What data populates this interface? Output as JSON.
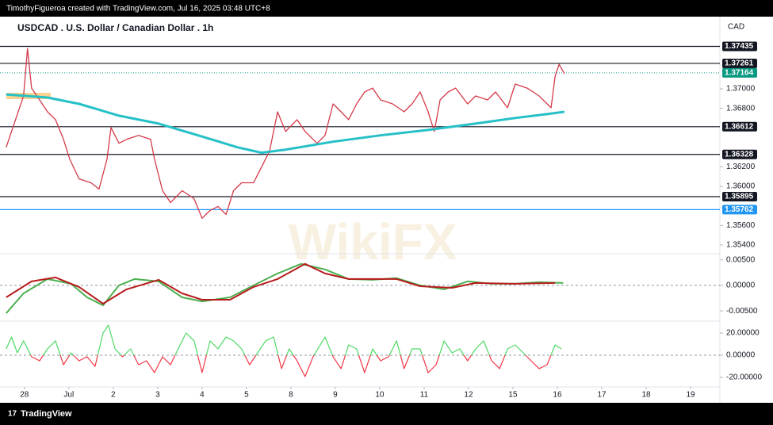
{
  "header": {
    "text": "TimothyFigueroa created with TradingView.com, Jul 16, 2025 03:48 UTC+8"
  },
  "footer": {
    "brand": "TradingView"
  },
  "watermark": "WikiFX",
  "chart_data": [
    {
      "type": "line",
      "title": "USDCAD . U.S. Dollar / Canadian Dollar . 1h",
      "y_label": "CAD",
      "xlim": [
        -0.55,
        15.66
      ],
      "ylim": [
        1.3531,
        1.3774
      ],
      "yticks": [
        {
          "value": 1.37,
          "label": "1.37000"
        },
        {
          "value": 1.368,
          "label": "1.36800"
        },
        {
          "value": 1.362,
          "label": "1.36200"
        },
        {
          "value": 1.36,
          "label": "1.36000"
        },
        {
          "value": 1.356,
          "label": "1.35600"
        },
        {
          "value": 1.354,
          "label": "1.35400"
        }
      ],
      "levels": [
        {
          "value": 1.37435,
          "color": "#131722"
        },
        {
          "value": 1.37261,
          "color": "#131722"
        },
        {
          "value": 1.37164,
          "color": "#089981"
        },
        {
          "value": 1.36612,
          "color": "#131722"
        },
        {
          "value": 1.36328,
          "color": "#131722"
        },
        {
          "value": 1.35895,
          "color": "#131722"
        },
        {
          "value": 1.35762,
          "color": "#2196f3"
        }
      ],
      "series": [
        {
          "color": "#d43a4a",
          "width": 1.3,
          "x": [
            -0.41,
            -0.2,
            -0.02,
            0.07,
            0.16,
            0.34,
            0.52,
            0.7,
            0.88,
            1.02,
            1.23,
            1.5,
            1.68,
            1.86,
            1.95,
            2.13,
            2.3,
            2.57,
            2.84,
            2.93,
            3.11,
            3.29,
            3.55,
            3.82,
            4,
            4.18,
            4.36,
            4.54,
            4.71,
            4.89,
            5.16,
            5.34,
            5.52,
            5.7,
            5.88,
            6.14,
            6.32,
            6.59,
            6.77,
            6.95,
            7.13,
            7.3,
            7.48,
            7.66,
            7.84,
            8.02,
            8.29,
            8.55,
            8.73,
            8.91,
            9.09,
            9.23,
            9.36,
            9.54,
            9.71,
            9.98,
            10.16,
            10.43,
            10.61,
            10.88,
            11.05,
            11.32,
            11.59,
            11.77,
            11.86,
            11.95,
            12.04,
            12.16
          ],
          "values": [
            1.36401,
            1.36684,
            1.36927,
            1.37413,
            1.37008,
            1.36887,
            1.36765,
            1.36684,
            1.36482,
            1.3628,
            1.36077,
            1.36037,
            1.35972,
            1.3628,
            1.36603,
            1.36442,
            1.36482,
            1.36523,
            1.36482,
            1.3628,
            1.35956,
            1.35835,
            1.35956,
            1.35875,
            1.35673,
            1.35754,
            1.35794,
            1.35713,
            1.35956,
            1.36037,
            1.36037,
            1.36199,
            1.36361,
            1.36765,
            1.36563,
            1.36684,
            1.36563,
            1.36442,
            1.36523,
            1.36846,
            1.36765,
            1.36684,
            1.36846,
            1.36968,
            1.37008,
            1.36887,
            1.36846,
            1.36765,
            1.36846,
            1.36968,
            1.36765,
            1.36563,
            1.36887,
            1.36968,
            1.37008,
            1.36846,
            1.36927,
            1.36887,
            1.36968,
            1.36806,
            1.37049,
            1.37008,
            1.36927,
            1.36846,
            1.36806,
            1.3713,
            1.37251,
            1.37154
          ]
        },
        {
          "color": "#26c0c7",
          "width": 3,
          "x": [
            -0.41,
            0.52,
            1.23,
            2.13,
            3.02,
            3.91,
            4.8,
            5.34,
            5.88,
            6.95,
            8.02,
            9.09,
            10.16,
            11.05,
            11.77,
            12.16
          ],
          "values": [
            1.36943,
            1.36911,
            1.36846,
            1.36725,
            1.36644,
            1.36523,
            1.36401,
            1.36345,
            1.36377,
            1.36458,
            1.36523,
            1.36579,
            1.36644,
            1.36701,
            1.36741,
            1.36765
          ]
        }
      ]
    },
    {
      "type": "line",
      "xlim": [
        -0.55,
        15.66
      ],
      "ylim": [
        -0.007,
        0.0062
      ],
      "yticks": [
        {
          "value": 0.005,
          "label": "0.00500"
        },
        {
          "value": 0,
          "label": "0.00000"
        },
        {
          "value": -0.005,
          "label": "-0.00500"
        }
      ],
      "zero_line": true,
      "series": [
        {
          "color": "#4caf50",
          "width": 2,
          "x": [
            -0.41,
            -0.02,
            0.52,
            1.05,
            1.41,
            1.77,
            2.13,
            2.48,
            3.02,
            3.55,
            4,
            4.63,
            5.16,
            5.7,
            6.23,
            6.77,
            7.3,
            7.84,
            8.38,
            8.91,
            9.45,
            9.98,
            10.52,
            11.05,
            11.59,
            12.13
          ],
          "values": [
            -0.00547,
            -0.00156,
            0.00125,
            0.00031,
            -0.00234,
            -0.00391,
            0,
            0.00125,
            0.00078,
            -0.00234,
            -0.00313,
            -0.00234,
            0,
            0.00234,
            0.00422,
            0.00313,
            0.00125,
            0.00109,
            0.00141,
            0,
            -0.00078,
            0.00078,
            0.00031,
            0.00031,
            0.00063,
            0.00047
          ]
        },
        {
          "color": "#b71c1c",
          "width": 2,
          "x": [
            -0.41,
            0.16,
            0.7,
            1.23,
            1.77,
            2.3,
            3.02,
            3.55,
            4,
            4.63,
            5.16,
            5.7,
            6.32,
            6.77,
            7.3,
            8.38,
            8.91,
            9.63,
            10.16,
            11.05,
            11.95
          ],
          "values": [
            -0.00234,
            0.00078,
            0.00156,
            -0.00031,
            -0.00359,
            -0.00078,
            0.00109,
            -0.00156,
            -0.00281,
            -0.00281,
            -0.00031,
            0.00125,
            0.00422,
            0.00234,
            0.00125,
            0.00125,
            -0.00016,
            -0.00047,
            0.00047,
            0.00031,
            0.00047
          ]
        }
      ]
    },
    {
      "type": "line",
      "xlim": [
        -0.55,
        15.66
      ],
      "ylim": [
        -28.6,
        30.7
      ],
      "yticks": [
        {
          "value": 20,
          "label": "20.00000"
        },
        {
          "value": 0,
          "label": "0.00000"
        },
        {
          "value": -20,
          "label": "-20.00000"
        }
      ],
      "zero_line": true,
      "xticks": [
        {
          "value": 0,
          "label": "28"
        },
        {
          "value": 1,
          "label": "Jul"
        },
        2,
        3,
        4,
        5,
        {
          "value": 6,
          "label": "8"
        },
        {
          "value": 7,
          "label": "9"
        },
        {
          "value": 8,
          "label": "10"
        },
        {
          "value": 9,
          "label": "11"
        },
        {
          "value": 10,
          "label": "12"
        },
        {
          "value": 11,
          "label": "15"
        },
        {
          "value": 12,
          "label": "16"
        },
        {
          "value": 13,
          "label": "17"
        },
        {
          "value": 14,
          "label": "18"
        },
        {
          "value": 15,
          "label": "19"
        }
      ],
      "series": [
        {
          "color": "#4cd964",
          "negative_color": "#f23645",
          "width": 1.2,
          "x": [
            -0.41,
            -0.29,
            -0.16,
            -0.02,
            0.16,
            0.34,
            0.52,
            0.7,
            0.88,
            1.05,
            1.23,
            1.41,
            1.59,
            1.77,
            1.89,
            2.04,
            2.21,
            2.39,
            2.57,
            2.75,
            2.93,
            3.11,
            3.29,
            3.46,
            3.64,
            3.82,
            4,
            4.18,
            4.36,
            4.54,
            4.71,
            4.89,
            5.07,
            5.25,
            5.43,
            5.61,
            5.79,
            5.96,
            6.14,
            6.32,
            6.5,
            6.77,
            6.95,
            7.13,
            7.3,
            7.48,
            7.66,
            7.84,
            8.02,
            8.2,
            8.38,
            8.55,
            8.73,
            8.91,
            9.09,
            9.27,
            9.45,
            9.63,
            9.8,
            9.98,
            10.16,
            10.34,
            10.52,
            10.7,
            10.88,
            11.05,
            11.23,
            11.41,
            11.59,
            11.77,
            11.95,
            12.09
          ],
          "values": [
            5.7,
            16.4,
            2.1,
            12.9,
            -1.4,
            -5,
            5.7,
            12.9,
            -8.6,
            2.1,
            -5,
            -1.4,
            -10,
            20,
            27.1,
            5.7,
            -1.4,
            5.7,
            -8.6,
            -5,
            -15.7,
            -1.4,
            -8.6,
            5.7,
            20,
            12.9,
            -15.7,
            12.9,
            5.7,
            16.4,
            12.9,
            5.7,
            -8.6,
            2.1,
            12.9,
            16.4,
            -12.1,
            5.7,
            -5,
            -19.3,
            -1.4,
            16.4,
            -1.4,
            -12.1,
            9.3,
            5.7,
            -15.7,
            5.7,
            -5,
            -1.4,
            12.9,
            -12.1,
            5.7,
            5.7,
            -15.7,
            -8.6,
            12.9,
            2.1,
            5.7,
            -5,
            5.7,
            12.9,
            -5,
            -12.1,
            5.7,
            9.3,
            2.1,
            -5,
            -12.1,
            -8.6,
            9.3,
            5.7
          ]
        }
      ]
    }
  ]
}
